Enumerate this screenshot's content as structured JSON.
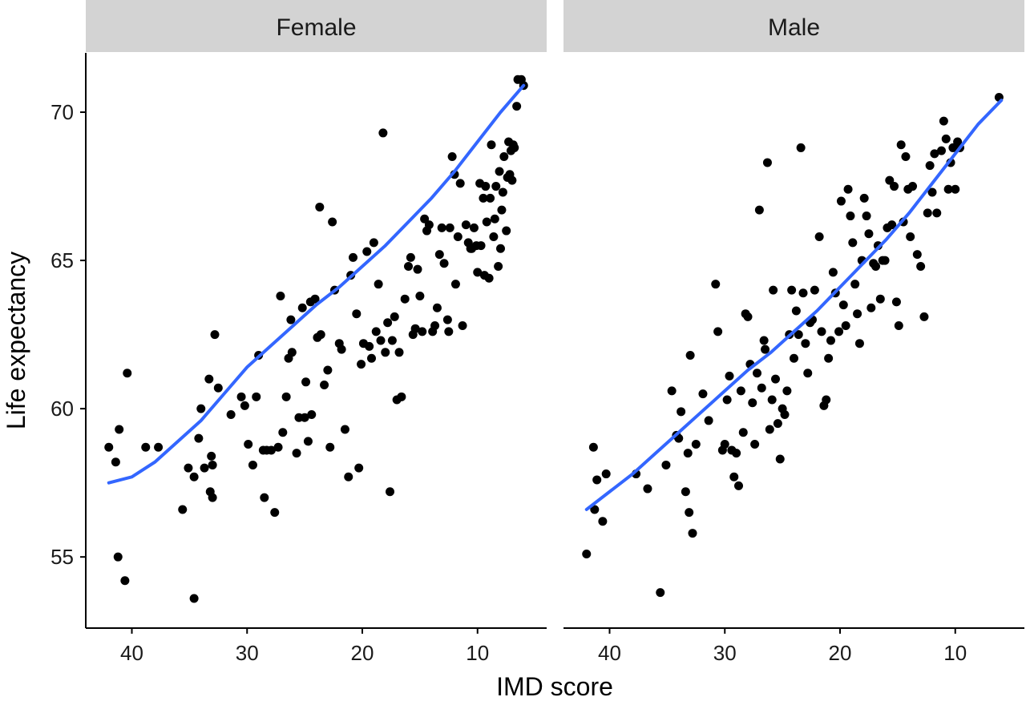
{
  "chart_data": {
    "type": "scatter",
    "ylabel": "Life expectancy",
    "xlabel": "IMD score",
    "x_reversed": true,
    "xlim": [
      44,
      4
    ],
    "ylim": [
      52.6,
      72
    ],
    "x_ticks": [
      40,
      30,
      20,
      10
    ],
    "y_ticks": [
      55,
      60,
      65,
      70
    ],
    "grid": false,
    "colors": {
      "points": "#000000",
      "smooth": "#3366ff",
      "strip_bg": "#d3d3d3"
    },
    "panels": [
      {
        "name": "Female",
        "smooth": [
          [
            42,
            57.5
          ],
          [
            40,
            57.7
          ],
          [
            38,
            58.2
          ],
          [
            36,
            58.9
          ],
          [
            34,
            59.6
          ],
          [
            32,
            60.5
          ],
          [
            30,
            61.4
          ],
          [
            28,
            62.1
          ],
          [
            26,
            62.8
          ],
          [
            24,
            63.5
          ],
          [
            22,
            64.1
          ],
          [
            20,
            64.8
          ],
          [
            18,
            65.5
          ],
          [
            16,
            66.3
          ],
          [
            14,
            67.1
          ],
          [
            12,
            68.0
          ],
          [
            10,
            69.0
          ],
          [
            8,
            70.0
          ],
          [
            6,
            70.9
          ]
        ],
        "points": [
          [
            42,
            58.7
          ],
          [
            41.4,
            58.2
          ],
          [
            41.1,
            59.3
          ],
          [
            41.2,
            55.0
          ],
          [
            40.6,
            54.2
          ],
          [
            40.4,
            61.2
          ],
          [
            38.8,
            58.7
          ],
          [
            37.7,
            58.7
          ],
          [
            35.6,
            56.6
          ],
          [
            35.1,
            58.0
          ],
          [
            34.6,
            57.7
          ],
          [
            34.6,
            53.6
          ],
          [
            34.2,
            59.0
          ],
          [
            34.0,
            60.0
          ],
          [
            33.7,
            58.0
          ],
          [
            33.3,
            61.0
          ],
          [
            33.1,
            58.4
          ],
          [
            33.2,
            57.2
          ],
          [
            33.0,
            58.1
          ],
          [
            33.0,
            57.0
          ],
          [
            32.8,
            62.5
          ],
          [
            32.5,
            60.7
          ],
          [
            31.4,
            59.8
          ],
          [
            30.5,
            60.4
          ],
          [
            30.2,
            60.1
          ],
          [
            29.9,
            58.8
          ],
          [
            29.5,
            58.1
          ],
          [
            29.2,
            60.4
          ],
          [
            29.0,
            61.8
          ],
          [
            28.6,
            58.6
          ],
          [
            28.5,
            57.0
          ],
          [
            28.3,
            58.6
          ],
          [
            27.9,
            58.6
          ],
          [
            27.6,
            56.5
          ],
          [
            27.3,
            58.7
          ],
          [
            27.1,
            63.8
          ],
          [
            26.9,
            59.2
          ],
          [
            26.6,
            60.4
          ],
          [
            26.4,
            61.7
          ],
          [
            26.2,
            63.0
          ],
          [
            26.1,
            61.9
          ],
          [
            25.7,
            58.5
          ],
          [
            25.5,
            59.7
          ],
          [
            25.2,
            63.4
          ],
          [
            25.0,
            59.7
          ],
          [
            24.9,
            60.9
          ],
          [
            24.7,
            58.9
          ],
          [
            24.5,
            63.6
          ],
          [
            24.4,
            59.8
          ],
          [
            24.1,
            63.7
          ],
          [
            23.9,
            62.4
          ],
          [
            23.7,
            66.8
          ],
          [
            23.6,
            62.5
          ],
          [
            23.3,
            60.8
          ],
          [
            23.0,
            61.3
          ],
          [
            22.8,
            58.7
          ],
          [
            22.6,
            66.3
          ],
          [
            22.4,
            64.0
          ],
          [
            22.0,
            62.2
          ],
          [
            21.8,
            62.0
          ],
          [
            21.5,
            59.3
          ],
          [
            21.2,
            57.7
          ],
          [
            21.0,
            64.5
          ],
          [
            20.8,
            65.1
          ],
          [
            20.5,
            63.2
          ],
          [
            20.3,
            58.0
          ],
          [
            20.1,
            61.5
          ],
          [
            19.9,
            62.2
          ],
          [
            19.6,
            65.3
          ],
          [
            19.4,
            62.1
          ],
          [
            19.2,
            61.7
          ],
          [
            19.0,
            65.6
          ],
          [
            18.8,
            62.6
          ],
          [
            18.6,
            64.2
          ],
          [
            18.4,
            62.3
          ],
          [
            18.2,
            69.3
          ],
          [
            18.0,
            61.9
          ],
          [
            17.8,
            62.9
          ],
          [
            17.6,
            57.2
          ],
          [
            17.4,
            62.3
          ],
          [
            17.2,
            63.1
          ],
          [
            17.0,
            60.3
          ],
          [
            16.8,
            61.9
          ],
          [
            16.6,
            60.4
          ],
          [
            16.3,
            63.7
          ],
          [
            16.0,
            64.8
          ],
          [
            15.8,
            65.1
          ],
          [
            15.6,
            62.5
          ],
          [
            15.4,
            62.7
          ],
          [
            15.2,
            64.7
          ],
          [
            15.0,
            63.8
          ],
          [
            14.8,
            62.6
          ],
          [
            14.6,
            66.4
          ],
          [
            14.4,
            66.0
          ],
          [
            14.2,
            66.2
          ],
          [
            13.9,
            62.6
          ],
          [
            13.7,
            62.8
          ],
          [
            13.5,
            63.4
          ],
          [
            13.3,
            65.2
          ],
          [
            13.1,
            66.1
          ],
          [
            12.9,
            64.9
          ],
          [
            12.6,
            63.0
          ],
          [
            12.5,
            62.6
          ],
          [
            12.4,
            66.1
          ],
          [
            12.2,
            68.5
          ],
          [
            12.0,
            67.9
          ],
          [
            11.9,
            64.2
          ],
          [
            11.7,
            65.8
          ],
          [
            11.5,
            67.6
          ],
          [
            11.3,
            62.8
          ],
          [
            11.0,
            66.2
          ],
          [
            10.8,
            65.6
          ],
          [
            10.6,
            65.4
          ],
          [
            10.5,
            65.4
          ],
          [
            10.3,
            66.1
          ],
          [
            10.1,
            65.5
          ],
          [
            10.0,
            64.6
          ],
          [
            9.8,
            67.6
          ],
          [
            9.7,
            65.5
          ],
          [
            9.5,
            67.1
          ],
          [
            9.4,
            64.5
          ],
          [
            9.3,
            67.5
          ],
          [
            9.2,
            66.3
          ],
          [
            9.0,
            64.4
          ],
          [
            8.9,
            67.1
          ],
          [
            8.8,
            68.9
          ],
          [
            8.6,
            65.8
          ],
          [
            8.5,
            66.4
          ],
          [
            8.4,
            67.5
          ],
          [
            8.2,
            64.8
          ],
          [
            8.1,
            68.0
          ],
          [
            8.0,
            65.4
          ],
          [
            7.9,
            66.7
          ],
          [
            7.8,
            67.3
          ],
          [
            7.7,
            68.5
          ],
          [
            7.5,
            66.0
          ],
          [
            7.4,
            67.8
          ],
          [
            7.3,
            69.0
          ],
          [
            7.2,
            67.9
          ],
          [
            7.1,
            68.7
          ],
          [
            7.0,
            67.7
          ],
          [
            6.9,
            68.9
          ],
          [
            6.8,
            68.8
          ],
          [
            6.6,
            70.2
          ],
          [
            6.5,
            71.1
          ],
          [
            6.2,
            71.1
          ],
          [
            6.0,
            70.9
          ]
        ]
      },
      {
        "name": "Male",
        "smooth": [
          [
            42,
            56.6
          ],
          [
            40,
            57.2
          ],
          [
            38,
            57.8
          ],
          [
            36,
            58.5
          ],
          [
            34,
            59.2
          ],
          [
            32,
            59.9
          ],
          [
            30,
            60.6
          ],
          [
            28,
            61.3
          ],
          [
            26,
            61.9
          ],
          [
            24,
            62.6
          ],
          [
            22,
            63.3
          ],
          [
            20,
            64.1
          ],
          [
            18,
            64.9
          ],
          [
            16,
            65.7
          ],
          [
            14,
            66.6
          ],
          [
            12,
            67.6
          ],
          [
            10,
            68.6
          ],
          [
            8,
            69.6
          ],
          [
            6,
            70.4
          ]
        ],
        "points": [
          [
            42.0,
            55.1
          ],
          [
            41.4,
            58.7
          ],
          [
            41.3,
            56.6
          ],
          [
            41.1,
            57.6
          ],
          [
            40.6,
            56.2
          ],
          [
            40.3,
            57.8
          ],
          [
            37.7,
            57.8
          ],
          [
            36.7,
            57.3
          ],
          [
            35.6,
            53.8
          ],
          [
            35.1,
            58.1
          ],
          [
            34.6,
            60.6
          ],
          [
            34.2,
            59.1
          ],
          [
            34.0,
            59.0
          ],
          [
            33.8,
            59.9
          ],
          [
            33.4,
            57.2
          ],
          [
            33.2,
            58.5
          ],
          [
            33.1,
            56.5
          ],
          [
            33.0,
            61.8
          ],
          [
            32.8,
            55.8
          ],
          [
            32.5,
            58.8
          ],
          [
            31.9,
            60.5
          ],
          [
            31.4,
            59.6
          ],
          [
            30.8,
            64.2
          ],
          [
            30.6,
            62.6
          ],
          [
            30.2,
            58.6
          ],
          [
            30.0,
            58.8
          ],
          [
            29.8,
            60.3
          ],
          [
            29.6,
            61.1
          ],
          [
            29.4,
            58.6
          ],
          [
            29.2,
            57.7
          ],
          [
            29.0,
            58.5
          ],
          [
            28.8,
            57.4
          ],
          [
            28.6,
            60.6
          ],
          [
            28.4,
            59.2
          ],
          [
            28.2,
            63.2
          ],
          [
            28.0,
            63.1
          ],
          [
            27.8,
            61.5
          ],
          [
            27.6,
            60.2
          ],
          [
            27.4,
            58.8
          ],
          [
            27.2,
            61.2
          ],
          [
            27.0,
            66.7
          ],
          [
            26.8,
            60.7
          ],
          [
            26.6,
            62.3
          ],
          [
            26.5,
            62.0
          ],
          [
            26.3,
            68.3
          ],
          [
            26.1,
            59.3
          ],
          [
            25.9,
            60.3
          ],
          [
            25.8,
            64.0
          ],
          [
            25.6,
            61.0
          ],
          [
            25.4,
            59.5
          ],
          [
            25.2,
            58.3
          ],
          [
            25.0,
            60.0
          ],
          [
            24.8,
            59.8
          ],
          [
            24.6,
            60.6
          ],
          [
            24.4,
            62.5
          ],
          [
            24.2,
            64.0
          ],
          [
            24.0,
            61.7
          ],
          [
            23.8,
            63.3
          ],
          [
            23.6,
            62.5
          ],
          [
            23.4,
            68.8
          ],
          [
            23.2,
            63.9
          ],
          [
            23.0,
            62.2
          ],
          [
            22.8,
            61.2
          ],
          [
            22.6,
            62.9
          ],
          [
            22.4,
            63.0
          ],
          [
            22.2,
            64.0
          ],
          [
            21.8,
            65.8
          ],
          [
            21.6,
            62.6
          ],
          [
            21.4,
            60.1
          ],
          [
            21.2,
            60.3
          ],
          [
            21.0,
            61.7
          ],
          [
            20.8,
            62.3
          ],
          [
            20.6,
            64.6
          ],
          [
            20.4,
            63.9
          ],
          [
            20.1,
            62.6
          ],
          [
            19.9,
            67.0
          ],
          [
            19.7,
            63.5
          ],
          [
            19.5,
            62.8
          ],
          [
            19.3,
            67.4
          ],
          [
            19.1,
            66.5
          ],
          [
            18.9,
            65.6
          ],
          [
            18.7,
            64.2
          ],
          [
            18.5,
            63.2
          ],
          [
            18.3,
            62.2
          ],
          [
            18.1,
            65.0
          ],
          [
            17.9,
            67.1
          ],
          [
            17.7,
            66.5
          ],
          [
            17.5,
            65.9
          ],
          [
            17.3,
            63.4
          ],
          [
            17.1,
            64.9
          ],
          [
            16.9,
            64.8
          ],
          [
            16.7,
            65.5
          ],
          [
            16.5,
            63.7
          ],
          [
            16.3,
            65.0
          ],
          [
            16.1,
            65.0
          ],
          [
            15.9,
            66.1
          ],
          [
            15.7,
            67.7
          ],
          [
            15.5,
            66.2
          ],
          [
            15.3,
            67.5
          ],
          [
            15.1,
            63.6
          ],
          [
            14.9,
            62.8
          ],
          [
            14.7,
            68.9
          ],
          [
            14.5,
            66.3
          ],
          [
            14.3,
            68.5
          ],
          [
            14.1,
            67.4
          ],
          [
            13.9,
            65.8
          ],
          [
            13.7,
            67.5
          ],
          [
            13.3,
            65.2
          ],
          [
            13.0,
            64.8
          ],
          [
            12.7,
            63.1
          ],
          [
            12.4,
            66.6
          ],
          [
            12.2,
            68.2
          ],
          [
            12.0,
            67.3
          ],
          [
            11.8,
            68.6
          ],
          [
            11.6,
            66.6
          ],
          [
            11.2,
            68.7
          ],
          [
            11.0,
            69.7
          ],
          [
            10.8,
            69.1
          ],
          [
            10.6,
            67.4
          ],
          [
            10.4,
            68.3
          ],
          [
            10.2,
            68.8
          ],
          [
            10.0,
            67.4
          ],
          [
            9.8,
            69.0
          ],
          [
            9.6,
            68.8
          ],
          [
            6.2,
            70.5
          ]
        ]
      }
    ]
  }
}
